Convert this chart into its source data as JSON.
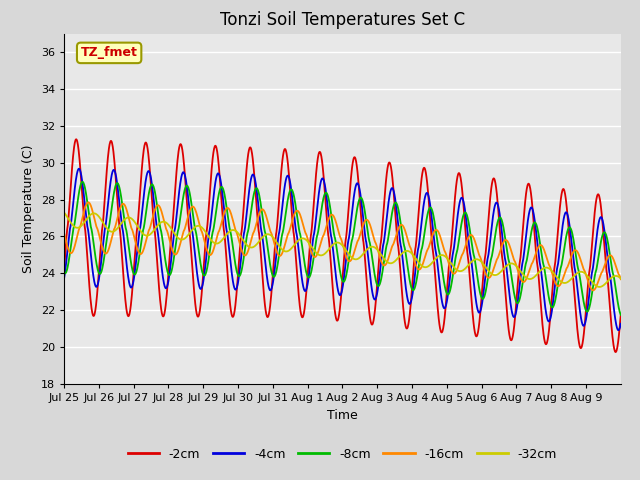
{
  "title": "Tonzi Soil Temperatures Set C",
  "xlabel": "Time",
  "ylabel": "Soil Temperature (C)",
  "ylim": [
    18,
    37
  ],
  "yticks": [
    18,
    20,
    22,
    24,
    26,
    28,
    30,
    32,
    34,
    36
  ],
  "xtick_labels": [
    "Jul 25",
    "Jul 26",
    "Jul 27",
    "Jul 28",
    "Jul 29",
    "Jul 30",
    "Jul 31",
    "Aug 1",
    "Aug 2",
    "Aug 3",
    "Aug 4",
    "Aug 5",
    "Aug 6",
    "Aug 7",
    "Aug 8",
    "Aug 9"
  ],
  "legend_labels": [
    "-2cm",
    "-4cm",
    "-8cm",
    "-16cm",
    "-32cm"
  ],
  "legend_colors": [
    "#dd0000",
    "#0000dd",
    "#00bb00",
    "#ff8800",
    "#cccc00"
  ],
  "line_width": 1.3,
  "annotation_text": "TZ_fmet",
  "annotation_facecolor": "#ffffbb",
  "annotation_edgecolor": "#999900",
  "annotation_textcolor": "#cc0000",
  "bg_color": "#e8e8e8",
  "title_fontsize": 12,
  "axis_label_fontsize": 9,
  "tick_fontsize": 8
}
